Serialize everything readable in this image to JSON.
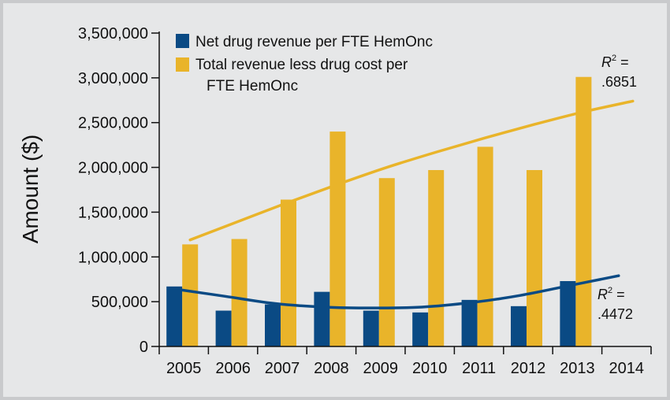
{
  "chart_data": {
    "type": "bar",
    "ylabel": "Amount ($)",
    "xlabel": "",
    "title": "",
    "categories": [
      "2005",
      "2006",
      "2007",
      "2008",
      "2009",
      "2010",
      "2011",
      "2012",
      "2013",
      "2014"
    ],
    "ylim": [
      0,
      3500000
    ],
    "yticks": [
      0,
      500000,
      1000000,
      1500000,
      2000000,
      2500000,
      3000000,
      3500000
    ],
    "ytick_labels": [
      "0",
      "500,000",
      "1,000,000",
      "1,500,000",
      "2,000,000",
      "2,500,000",
      "3,000,000",
      "3,500,000"
    ],
    "grid": false,
    "legend_position": "top-left",
    "series": [
      {
        "name": "Net drug revenue per FTE HemOnc",
        "color": "#0a4a84",
        "values": [
          670000,
          400000,
          470000,
          610000,
          400000,
          380000,
          520000,
          450000,
          730000,
          null
        ],
        "trend": {
          "type": "polynomial",
          "points": [
            [
              2005,
              640000
            ],
            [
              2006,
              560000
            ],
            [
              2007,
              480000
            ],
            [
              2008,
              440000
            ],
            [
              2009,
              430000
            ],
            [
              2010,
              440000
            ],
            [
              2011,
              490000
            ],
            [
              2012,
              570000
            ],
            [
              2013,
              680000
            ],
            [
              2014,
              790000
            ]
          ],
          "r2_label": "R",
          "r2_sup": "2",
          "r2_eq": " =",
          "r2_value": ".4472"
        }
      },
      {
        "name": "Total revenue less drug cost per FTE HemOnc",
        "color": "#e9b42a",
        "values": [
          1140000,
          1200000,
          1640000,
          2400000,
          1880000,
          1970000,
          2230000,
          1970000,
          3010000,
          null
        ],
        "trend": {
          "type": "polynomial",
          "points": [
            [
              2005,
              1190000
            ],
            [
              2006,
              1400000
            ],
            [
              2007,
              1610000
            ],
            [
              2008,
              1810000
            ],
            [
              2009,
              2000000
            ],
            [
              2010,
              2170000
            ],
            [
              2011,
              2330000
            ],
            [
              2012,
              2480000
            ],
            [
              2013,
              2620000
            ],
            [
              2014,
              2740000
            ]
          ],
          "r2_label": "R",
          "r2_sup": "2",
          "r2_eq": " =",
          "r2_value": ".6851"
        }
      }
    ],
    "legend": {
      "line1": "Net drug revenue per FTE HemOnc",
      "line2a": "Total revenue less drug cost per",
      "line2b": "FTE HemOnc"
    }
  }
}
